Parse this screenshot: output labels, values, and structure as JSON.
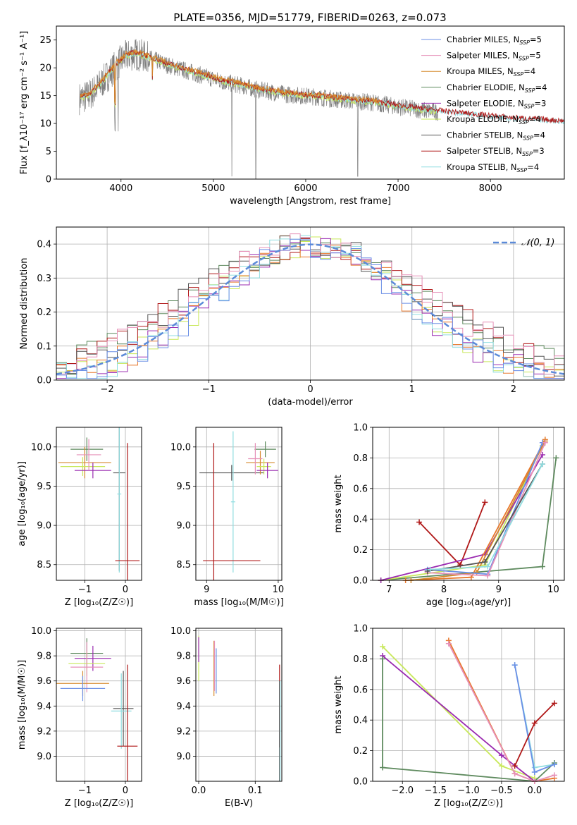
{
  "figure": {
    "title": "PLATE=0356, MJD=51779, FIBERID=0263, z=0.073"
  },
  "colors": {
    "chabrier_miles": "#6b8fe6",
    "salpeter_miles": "#e690b8",
    "kroupa_miles": "#d68a2c",
    "chabrier_elodie": "#5e8a5e",
    "salpeter_elodie": "#9a2ab0",
    "kroupa_elodie": "#c8e85a",
    "chabrier_stelib": "#555555",
    "salpeter_stelib": "#b01818",
    "kroupa_stelib": "#8fdde0",
    "orange": "#e8782c",
    "data": "#7f7f7f",
    "normal": "#5b8ad8"
  },
  "chart_data": [
    {
      "type": "line",
      "panel": "spectrum",
      "xlabel": "wavelength [Angstrom, rest frame]",
      "ylabel": "Flux [f_λ10⁻¹⁷ erg cm⁻² s⁻¹ A⁻¹]",
      "xlim": [
        3300,
        8800
      ],
      "ylim": [
        0,
        27.5
      ],
      "xticks": [
        4000,
        5000,
        6000,
        7000,
        8000
      ],
      "yticks": [
        0,
        5,
        10,
        15,
        20,
        25
      ],
      "grid": false,
      "legend_position": "top-right",
      "legend": [
        "Chabrier MILES, N_SSP=5",
        "Salpeter MILES, N_SSP=5",
        "Kroupa MILES, N_SSP=4",
        "Chabrier ELODIE, N_SSP=4",
        "Salpeter ELODIE, N_SSP=3",
        "Kroupa ELODIE, N_SSP=4",
        "Chabrier STELIB, N_SSP=4",
        "Salpeter STELIB, N_SSP=3",
        "Kroupa STELIB, N_SSP=4"
      ],
      "continuum_x": [
        3550,
        3650,
        3750,
        3850,
        3950,
        4050,
        4150,
        4300,
        4500,
        4700,
        4900,
        5100,
        5300,
        5500,
        5800,
        6100,
        6400,
        6700,
        7000,
        7300,
        7600,
        7900,
        8200,
        8500,
        8800
      ],
      "continuum_y": [
        14.5,
        15,
        16.5,
        18.5,
        20.5,
        22,
        22.5,
        21.8,
        20.5,
        19.5,
        18.5,
        17.5,
        16.8,
        16,
        15.2,
        14.8,
        14.2,
        13.8,
        13,
        12.3,
        11.8,
        11.3,
        10.8,
        10.5,
        10.2
      ]
    },
    {
      "type": "bar",
      "panel": "residuals",
      "xlabel": "(data-model)/error",
      "ylabel": "Normed distribution",
      "xlim": [
        -2.5,
        2.5
      ],
      "ylim": [
        0,
        0.45
      ],
      "xticks": [
        -2,
        -1,
        0,
        1,
        2
      ],
      "yticks": [
        0.0,
        0.1,
        0.2,
        0.3,
        0.4
      ],
      "grid": true,
      "legend_position": "top-right",
      "legend": [
        "𝒩(0, 1)"
      ],
      "bin_width": 0.1
    },
    {
      "type": "scatter",
      "panel": "age-vs-Z",
      "xlabel": "Z [log₁₀(Z/Z☉)]",
      "ylabel": "age  [log₁₀(age/yr)]",
      "xlim": [
        -1.7,
        0.4
      ],
      "ylim": [
        8.3,
        10.25
      ],
      "xticks": [
        -1,
        0
      ],
      "yticks": [
        8.5,
        9.0,
        9.5,
        10.0
      ],
      "grid": true,
      "points": [
        {
          "x": -0.95,
          "y": 9.97,
          "xerr": 0.4,
          "yerr": 0.15,
          "color": "chabrier_elodie"
        },
        {
          "x": -1.0,
          "y": 9.8,
          "xerr": 0.65,
          "yerr": 0.2,
          "color": "kroupa_miles"
        },
        {
          "x": -1.05,
          "y": 9.75,
          "xerr": 0.55,
          "yerr": 0.12,
          "color": "kroupa_elodie"
        },
        {
          "x": -0.8,
          "y": 9.7,
          "xerr": 0.45,
          "yerr": 0.1,
          "color": "salpeter_elodie"
        },
        {
          "x": -0.9,
          "y": 9.9,
          "xerr": 0.3,
          "yerr": 0.2,
          "color": "salpeter_miles"
        },
        {
          "x": -0.15,
          "y": 9.67,
          "xerr": 0.15,
          "yerr": 1.25,
          "color": "chabrier_stelib"
        },
        {
          "x": -0.15,
          "y": 9.4,
          "xerr": 0.05,
          "yerr": 1.0,
          "color": "kroupa_stelib"
        },
        {
          "x": 0.05,
          "y": 8.55,
          "xerr": 0.3,
          "yerr": 1.5,
          "color": "salpeter_stelib"
        }
      ]
    },
    {
      "type": "scatter",
      "panel": "age-vs-mass",
      "xlabel": "mass [log₁₀(M/M☉)]",
      "ylabel": "",
      "xlim": [
        8.85,
        10.05
      ],
      "ylim": [
        8.3,
        10.25
      ],
      "xticks": [
        9,
        10
      ],
      "yticks": [
        8.5,
        9.0,
        9.5,
        10.0
      ],
      "grid": true,
      "points": [
        {
          "x": 9.35,
          "y": 9.67,
          "xerr": 0.45,
          "yerr": 0.1,
          "color": "chabrier_stelib"
        },
        {
          "x": 9.37,
          "y": 9.3,
          "xerr": 0.03,
          "yerr": 0.9,
          "color": "kroupa_stelib"
        },
        {
          "x": 9.1,
          "y": 8.55,
          "xerr": 0.0,
          "yerr": 1.5,
          "color": "salpeter_stelib"
        },
        {
          "x": 9.35,
          "y": 8.55,
          "xerr": 0.4,
          "yerr": 0.0,
          "color": "salpeter_stelib"
        },
        {
          "x": 9.82,
          "y": 9.97,
          "xerr": 0.15,
          "yerr": 0.1,
          "color": "chabrier_elodie"
        },
        {
          "x": 9.75,
          "y": 9.8,
          "xerr": 0.2,
          "yerr": 0.15,
          "color": "kroupa_miles"
        },
        {
          "x": 9.8,
          "y": 9.75,
          "xerr": 0.1,
          "yerr": 0.1,
          "color": "kroupa_elodie"
        },
        {
          "x": 9.85,
          "y": 9.7,
          "xerr": 0.15,
          "yerr": 0.1,
          "color": "salpeter_elodie"
        },
        {
          "x": 9.68,
          "y": 9.85,
          "xerr": 0.1,
          "yerr": 0.2,
          "color": "salpeter_miles"
        }
      ]
    },
    {
      "type": "line",
      "panel": "mass-weight-vs-age",
      "xlabel": "age  [log₁₀(age/yr)]",
      "ylabel": "mass weight",
      "xlim": [
        6.7,
        10.2
      ],
      "ylim": [
        0,
        1.0
      ],
      "xticks": [
        7,
        8,
        9,
        10
      ],
      "yticks": [
        0.0,
        0.2,
        0.4,
        0.6,
        0.8,
        1.0
      ],
      "grid": true,
      "series": [
        {
          "color": "salpeter_stelib",
          "x": [
            7.55,
            8.3,
            8.75
          ],
          "y": [
            0.38,
            0.1,
            0.51
          ]
        },
        {
          "color": "chabrier_elodie",
          "x": [
            6.85,
            9.8,
            10.05
          ],
          "y": [
            0.0,
            0.09,
            0.8
          ]
        },
        {
          "color": "kroupa_elodie",
          "x": [
            6.85,
            8.75,
            9.8
          ],
          "y": [
            0.0,
            0.1,
            0.88
          ]
        },
        {
          "color": "salpeter_elodie",
          "x": [
            6.85,
            8.75,
            9.8
          ],
          "y": [
            0.0,
            0.17,
            0.82
          ]
        },
        {
          "color": "orange",
          "x": [
            7.3,
            8.5,
            9.85
          ],
          "y": [
            0.0,
            0.02,
            0.92
          ]
        },
        {
          "color": "kroupa_miles",
          "x": [
            7.4,
            8.6,
            9.85
          ],
          "y": [
            0.0,
            0.05,
            0.91
          ]
        },
        {
          "color": "chabrier_miles",
          "x": [
            7.7,
            8.8,
            9.8
          ],
          "y": [
            0.07,
            0.04,
            0.9
          ]
        },
        {
          "color": "salpeter_miles",
          "x": [
            7.7,
            8.8,
            9.85
          ],
          "y": [
            0.05,
            0.03,
            0.9
          ]
        },
        {
          "color": "chabrier_stelib",
          "x": [
            7.7,
            8.75,
            9.8
          ],
          "y": [
            0.06,
            0.12,
            0.76
          ]
        },
        {
          "color": "kroupa_stelib",
          "x": [
            7.75,
            8.8,
            9.8
          ],
          "y": [
            0.07,
            0.09,
            0.76
          ]
        }
      ]
    },
    {
      "type": "scatter",
      "panel": "mass-vs-Z",
      "xlabel": "Z [log₁₀(Z/Z☉)]",
      "ylabel": "mass [log₁₀(M/M☉)]",
      "xlim": [
        -1.7,
        0.4
      ],
      "ylim": [
        8.8,
        10.02
      ],
      "xticks": [
        -1,
        0
      ],
      "yticks": [
        9.0,
        9.2,
        9.4,
        9.6,
        9.8,
        10.0
      ],
      "grid": true,
      "points": [
        {
          "x": -0.95,
          "y": 9.82,
          "xerr": 0.4,
          "yerr": 0.12,
          "color": "chabrier_elodie"
        },
        {
          "x": -0.8,
          "y": 9.78,
          "xerr": 0.45,
          "yerr": 0.1,
          "color": "salpeter_elodie"
        },
        {
          "x": -0.95,
          "y": 9.74,
          "xerr": 0.45,
          "yerr": 0.1,
          "color": "kroupa_elodie"
        },
        {
          "x": -0.95,
          "y": 9.71,
          "xerr": 0.4,
          "yerr": 0.2,
          "color": "salpeter_miles"
        },
        {
          "x": -1.05,
          "y": 9.58,
          "xerr": 0.65,
          "yerr": 0.1,
          "color": "kroupa_miles"
        },
        {
          "x": -1.05,
          "y": 9.54,
          "xerr": 0.55,
          "yerr": 0.1,
          "color": "chabrier_miles"
        },
        {
          "x": -0.05,
          "y": 9.38,
          "xerr": 0.25,
          "yerr": 0.3,
          "color": "chabrier_stelib"
        },
        {
          "x": -0.1,
          "y": 9.36,
          "xerr": 0.25,
          "yerr": 0.3,
          "color": "kroupa_stelib"
        },
        {
          "x": 0.05,
          "y": 9.08,
          "xerr": 0.25,
          "yerr": 0.65,
          "color": "salpeter_stelib"
        }
      ]
    },
    {
      "type": "scatter",
      "panel": "mass-vs-EBV",
      "xlabel": "E(B-V)",
      "ylabel": "",
      "xlim": [
        -0.005,
        0.147
      ],
      "ylim": [
        8.8,
        10.02
      ],
      "xticks": [
        0.0,
        0.1
      ],
      "yticks": [
        9.0,
        9.2,
        9.4,
        9.6,
        9.8,
        10.0
      ],
      "grid": true,
      "points": [
        {
          "x": 0.0,
          "y": 9.78,
          "xerr": 0.0,
          "yerr": 0.18,
          "color": "kroupa_elodie"
        },
        {
          "x": 0.0,
          "y": 9.85,
          "xerr": 0.0,
          "yerr": 0.1,
          "color": "salpeter_elodie"
        },
        {
          "x": 0.027,
          "y": 9.7,
          "xerr": 0.0,
          "yerr": 0.22,
          "color": "kroupa_miles"
        },
        {
          "x": 0.028,
          "y": 9.72,
          "xerr": 0.0,
          "yerr": 0.2,
          "color": "salpeter_miles"
        },
        {
          "x": 0.031,
          "y": 9.68,
          "xerr": 0.0,
          "yerr": 0.18,
          "color": "chabrier_miles"
        },
        {
          "x": 0.143,
          "y": 9.4,
          "xerr": 0.0,
          "yerr": 0.33,
          "color": "salpeter_stelib"
        },
        {
          "x": 0.143,
          "y": 9.2,
          "xerr": 0.0,
          "yerr": 0.4,
          "color": "chabrier_stelib"
        },
        {
          "x": 0.144,
          "y": 9.2,
          "xerr": 0.0,
          "yerr": 0.4,
          "color": "kroupa_stelib"
        }
      ]
    },
    {
      "type": "line",
      "panel": "mass-weight-vs-Z",
      "xlabel": "Z [log₁₀(Z/Z☉)]",
      "ylabel": "mass weight",
      "xlim": [
        -2.45,
        0.45
      ],
      "ylim": [
        0,
        1.0
      ],
      "xticks": [
        -2.0,
        -1.5,
        -1.0,
        -0.5,
        0.0
      ],
      "yticks": [
        0.0,
        0.2,
        0.4,
        0.6,
        0.8,
        1.0
      ],
      "grid": true,
      "series": [
        {
          "color": "kroupa_elodie",
          "x": [
            -2.3,
            -0.5,
            0.0
          ],
          "y": [
            0.88,
            0.1,
            0.02
          ]
        },
        {
          "color": "salpeter_elodie",
          "x": [
            -2.3,
            -0.5,
            0.0
          ],
          "y": [
            0.82,
            0.17,
            0.0
          ]
        },
        {
          "color": "chabrier_elodie",
          "x": [
            -2.3,
            -2.3,
            0.0,
            0.3
          ],
          "y": [
            0.8,
            0.09,
            0.0,
            0.12
          ]
        },
        {
          "color": "orange",
          "x": [
            -1.3,
            -0.3,
            0.0,
            0.3
          ],
          "y": [
            0.92,
            0.05,
            0.0,
            0.02
          ]
        },
        {
          "color": "salpeter_miles",
          "x": [
            -1.3,
            -0.3,
            0.0,
            0.3
          ],
          "y": [
            0.9,
            0.05,
            0.0,
            0.04
          ]
        },
        {
          "color": "kroupa_stelib",
          "x": [
            -0.3,
            0.0,
            0.3
          ],
          "y": [
            0.76,
            0.09,
            0.11
          ]
        },
        {
          "color": "chabrier_miles",
          "x": [
            -0.3,
            0.0,
            0.3
          ],
          "y": [
            0.76,
            0.06,
            0.11
          ]
        },
        {
          "color": "salpeter_stelib",
          "x": [
            -0.3,
            0.0,
            0.3
          ],
          "y": [
            0.1,
            0.38,
            0.51
          ]
        }
      ]
    }
  ]
}
